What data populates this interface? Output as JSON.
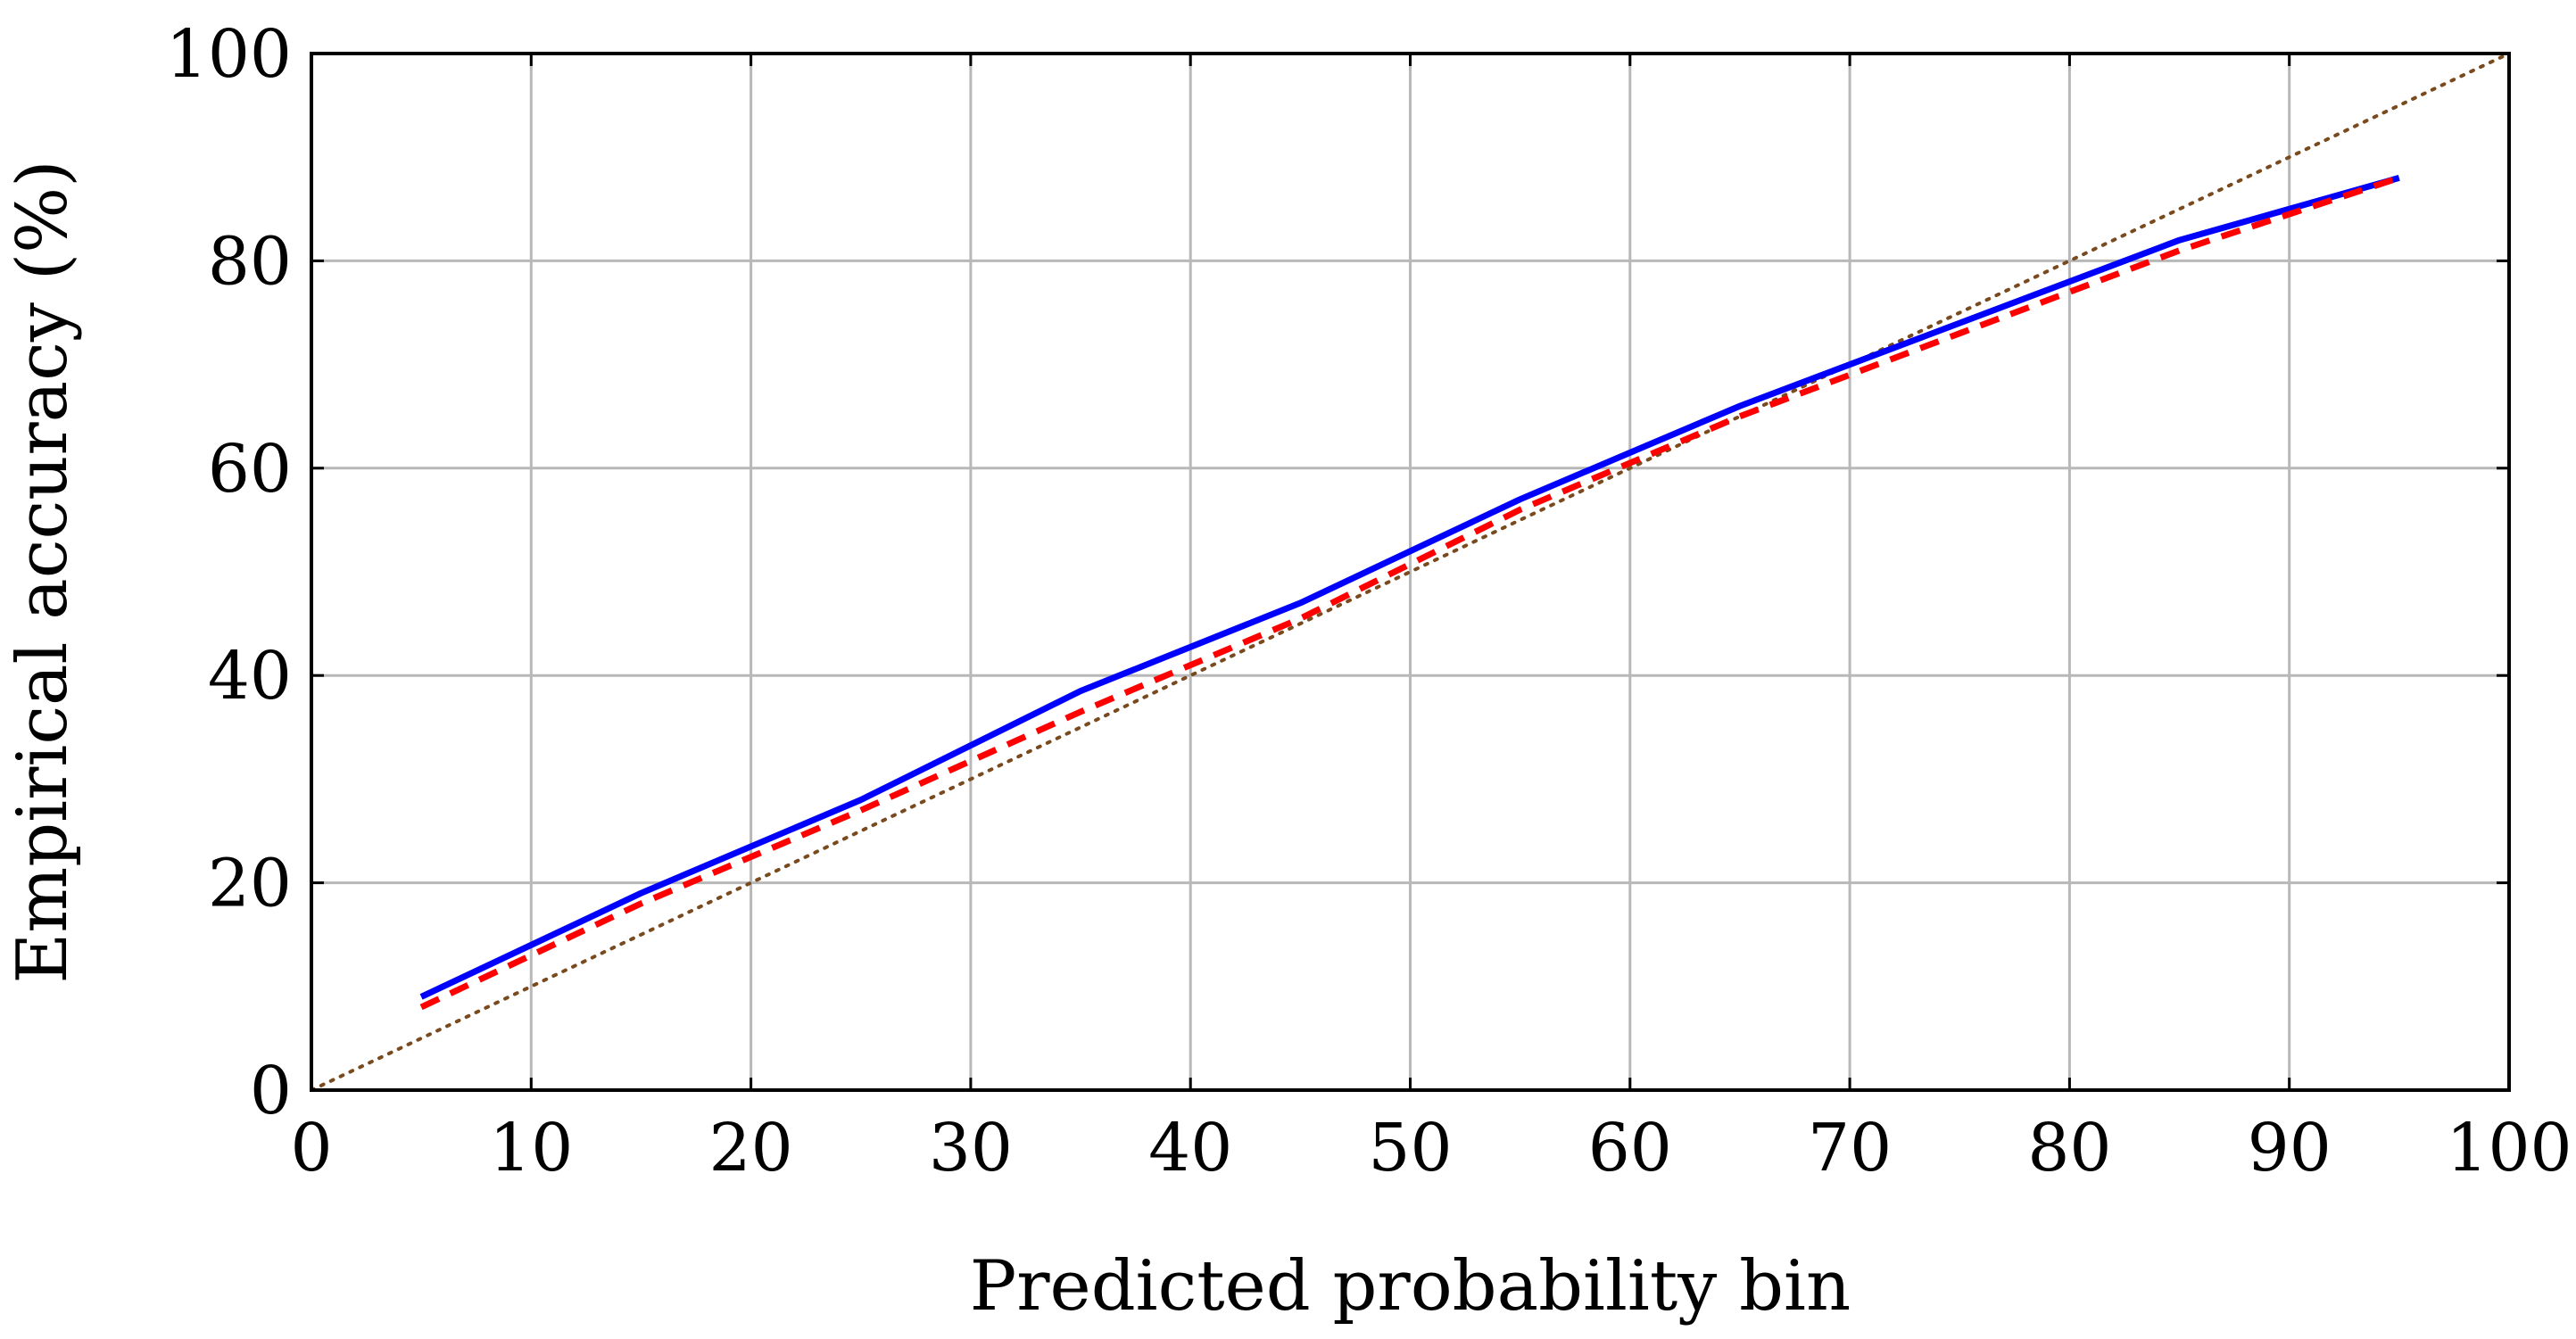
{
  "chart_data": {
    "type": "line",
    "xlabel": "Predicted probability bin",
    "ylabel": "Empirical accuracy (%)",
    "xlim": [
      0,
      100
    ],
    "ylim": [
      0,
      100
    ],
    "xticks": [
      "0",
      "10",
      "20",
      "30",
      "40",
      "50",
      "60",
      "70",
      "80",
      "90",
      "100"
    ],
    "yticks": [
      "0",
      "20",
      "40",
      "60",
      "80",
      "100"
    ],
    "grid": true,
    "series": [
      {
        "style": "solid",
        "color": "#0000ff",
        "x": [
          5,
          10,
          15,
          25,
          35,
          45,
          55,
          65,
          75,
          85,
          95
        ],
        "y": [
          9,
          14,
          19,
          28,
          38.5,
          47,
          57,
          66,
          74,
          82,
          88
        ]
      },
      {
        "style": "dashed",
        "color": "#ff0000",
        "x": [
          5,
          10,
          15,
          25,
          35,
          45,
          55,
          65,
          75,
          85,
          95
        ],
        "y": [
          8,
          13,
          18,
          27,
          36.5,
          45.5,
          56,
          65,
          73,
          81,
          88
        ]
      },
      {
        "style": "dotted",
        "color": "#7a4a1f",
        "x": [
          0,
          100
        ],
        "y": [
          0,
          100
        ]
      }
    ]
  }
}
